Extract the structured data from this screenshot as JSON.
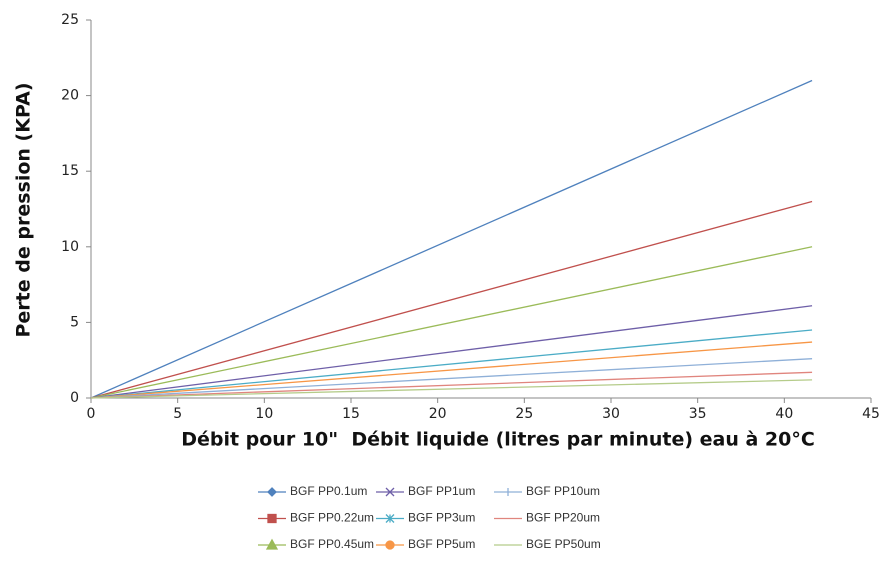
{
  "chart_data": {
    "type": "line",
    "x_label": "Débit pour 10\"  Débit liquide (litres par minute) eau à 20°C",
    "y_label": "Perte de pression (KPA)",
    "x": [
      0,
      41.6
    ],
    "xlim": [
      0,
      45
    ],
    "xticks": [
      0,
      5,
      10,
      15,
      20,
      25,
      30,
      35,
      40,
      45
    ],
    "ylim": [
      0,
      25
    ],
    "yticks": [
      0,
      5,
      10,
      15,
      20,
      25
    ],
    "grid": false,
    "legend": "bottom",
    "series": [
      {
        "name": "BGF PP0.1um",
        "color": "#4f81bd",
        "marker": "diamond",
        "values": [
          0,
          21
        ]
      },
      {
        "name": "BGF PP0.22um",
        "color": "#c0504d",
        "marker": "square",
        "values": [
          0,
          13
        ]
      },
      {
        "name": "BGF PP0.45um",
        "color": "#9bbb59",
        "marker": "triangle",
        "values": [
          0,
          10
        ]
      },
      {
        "name": "BGF PP1um",
        "color": "#6e5fa8",
        "marker": "x",
        "values": [
          0,
          6.1
        ]
      },
      {
        "name": "BGF PP3um",
        "color": "#4bacc6",
        "marker": "star",
        "values": [
          0,
          4.5
        ]
      },
      {
        "name": "BGF PP5um",
        "color": "#f79646",
        "marker": "circle",
        "values": [
          0,
          3.7
        ]
      },
      {
        "name": "BGF PP10um",
        "color": "#8fb0d8",
        "marker": "plus",
        "values": [
          0,
          2.6
        ]
      },
      {
        "name": "BGF PP20um",
        "color": "#e0857e",
        "marker": "dash",
        "values": [
          0,
          1.7
        ]
      },
      {
        "name": "BGE PP50um",
        "color": "#b5cc8a",
        "marker": "dash",
        "values": [
          0,
          1.2
        ]
      }
    ]
  }
}
